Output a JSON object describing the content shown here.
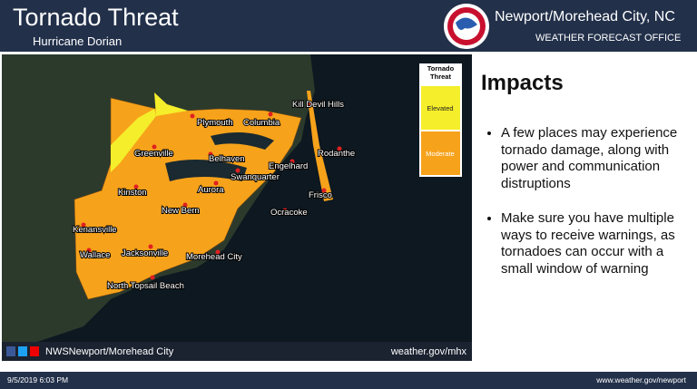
{
  "header": {
    "title": "Tornado Threat",
    "subtitle": "Hurricane Dorian"
  },
  "office": {
    "name": "Newport/Morehead City, NC",
    "subtitle": "WEATHER FORECAST OFFICE"
  },
  "legend": {
    "title": "Tornado Threat",
    "items": [
      "Elevated",
      "Moderate"
    ]
  },
  "map": {
    "labels": [
      "Kill Devil Hills",
      "Plymouth",
      "Columbia",
      "Greenville",
      "Belhaven",
      "Rodanthe",
      "Engelhard",
      "Swanquarter",
      "Aurora",
      "Kinston",
      "Frisco",
      "New Bern",
      "Ocracoke",
      "Kenansville",
      "Wallace",
      "Jacksonville",
      "Morehead City",
      "North Topsail Beach"
    ]
  },
  "map_footer": {
    "handle": "NWSNewport/Morehead City",
    "url": "weather.gov/mhx"
  },
  "impacts": {
    "title": "Impacts",
    "bullets": [
      "A few places may experience tornado damage, along with power and communication distruptions",
      "Make sure you have multiple ways to receive warnings, as tornadoes can occur with a small window of warning"
    ]
  },
  "footer": {
    "date": "9/5/2019 6:03 PM",
    "url": "www.weather.gov/newport"
  }
}
